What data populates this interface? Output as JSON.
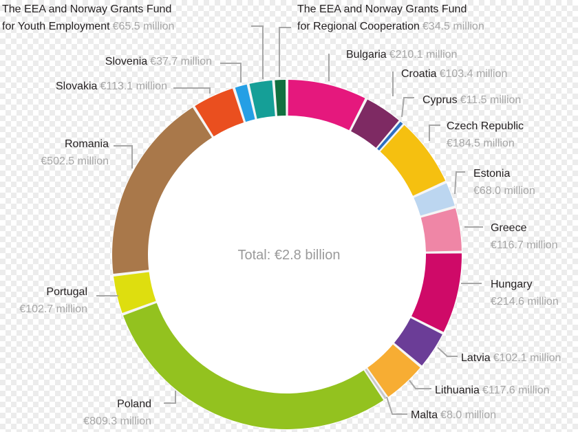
{
  "chart_data": {
    "type": "pie",
    "title": "",
    "center_label": "Total: €2.8 billion",
    "slices": [
      {
        "name": "Bulgaria",
        "value_label": "€210.1 million",
        "value": 210.1,
        "color": "#e5187d"
      },
      {
        "name": "Croatia",
        "value_label": "€103.4 million",
        "value": 103.4,
        "color": "#7e2a63"
      },
      {
        "name": "Cyprus",
        "value_label": "€11.5 million",
        "value": 11.5,
        "color": "#2d6fc1"
      },
      {
        "name": "Czech Republic",
        "value_label": "€184.5 million",
        "value": 184.5,
        "color": "#f5c010"
      },
      {
        "name": "Estonia",
        "value_label": "€68.0 million",
        "value": 68.0,
        "color": "#bcd6f0"
      },
      {
        "name": "Greece",
        "value_label": "€116.7 million",
        "value": 116.7,
        "color": "#ef86a6"
      },
      {
        "name": "Hungary",
        "value_label": "€214.6 million",
        "value": 214.6,
        "color": "#cf0a68"
      },
      {
        "name": "Latvia",
        "value_label": "€102.1 million",
        "value": 102.1,
        "color": "#6b3d97"
      },
      {
        "name": "Lithuania",
        "value_label": "€117.6 million",
        "value": 117.6,
        "color": "#f7ad33"
      },
      {
        "name": "Malta",
        "value_label": "€8.0 million",
        "value": 8.0,
        "color": "#c9c9c9"
      },
      {
        "name": "Poland",
        "value_label": "€809.3 million",
        "value": 809.3,
        "color": "#93c21f"
      },
      {
        "name": "Portugal",
        "value_label": "€102.7 million",
        "value": 102.7,
        "color": "#dede0f"
      },
      {
        "name": "Romania",
        "value_label": "€502.5 million",
        "value": 502.5,
        "color": "#a9784a"
      },
      {
        "name": "Slovakia",
        "value_label": "€113.1 million",
        "value": 113.1,
        "color": "#ea4f1f"
      },
      {
        "name": "Slovenia",
        "value_label": "€37.7 million",
        "value": 37.7,
        "color": "#259fe5"
      },
      {
        "name": "The EEA and Norway Grants Fund for Youth Employment",
        "name_lines": [
          "The EEA and Norway Grants Fund",
          "for Youth Employment"
        ],
        "value_label": "€65.5 million",
        "value": 65.5,
        "color": "#159f97"
      },
      {
        "name": "The EEA and Norway Grants Fund for Regional Cooperation",
        "name_lines": [
          "The EEA and Norway Grants Fund",
          "for Regional Cooperation"
        ],
        "value_label": "€34.5 million",
        "value": 34.5,
        "color": "#117040"
      }
    ]
  }
}
